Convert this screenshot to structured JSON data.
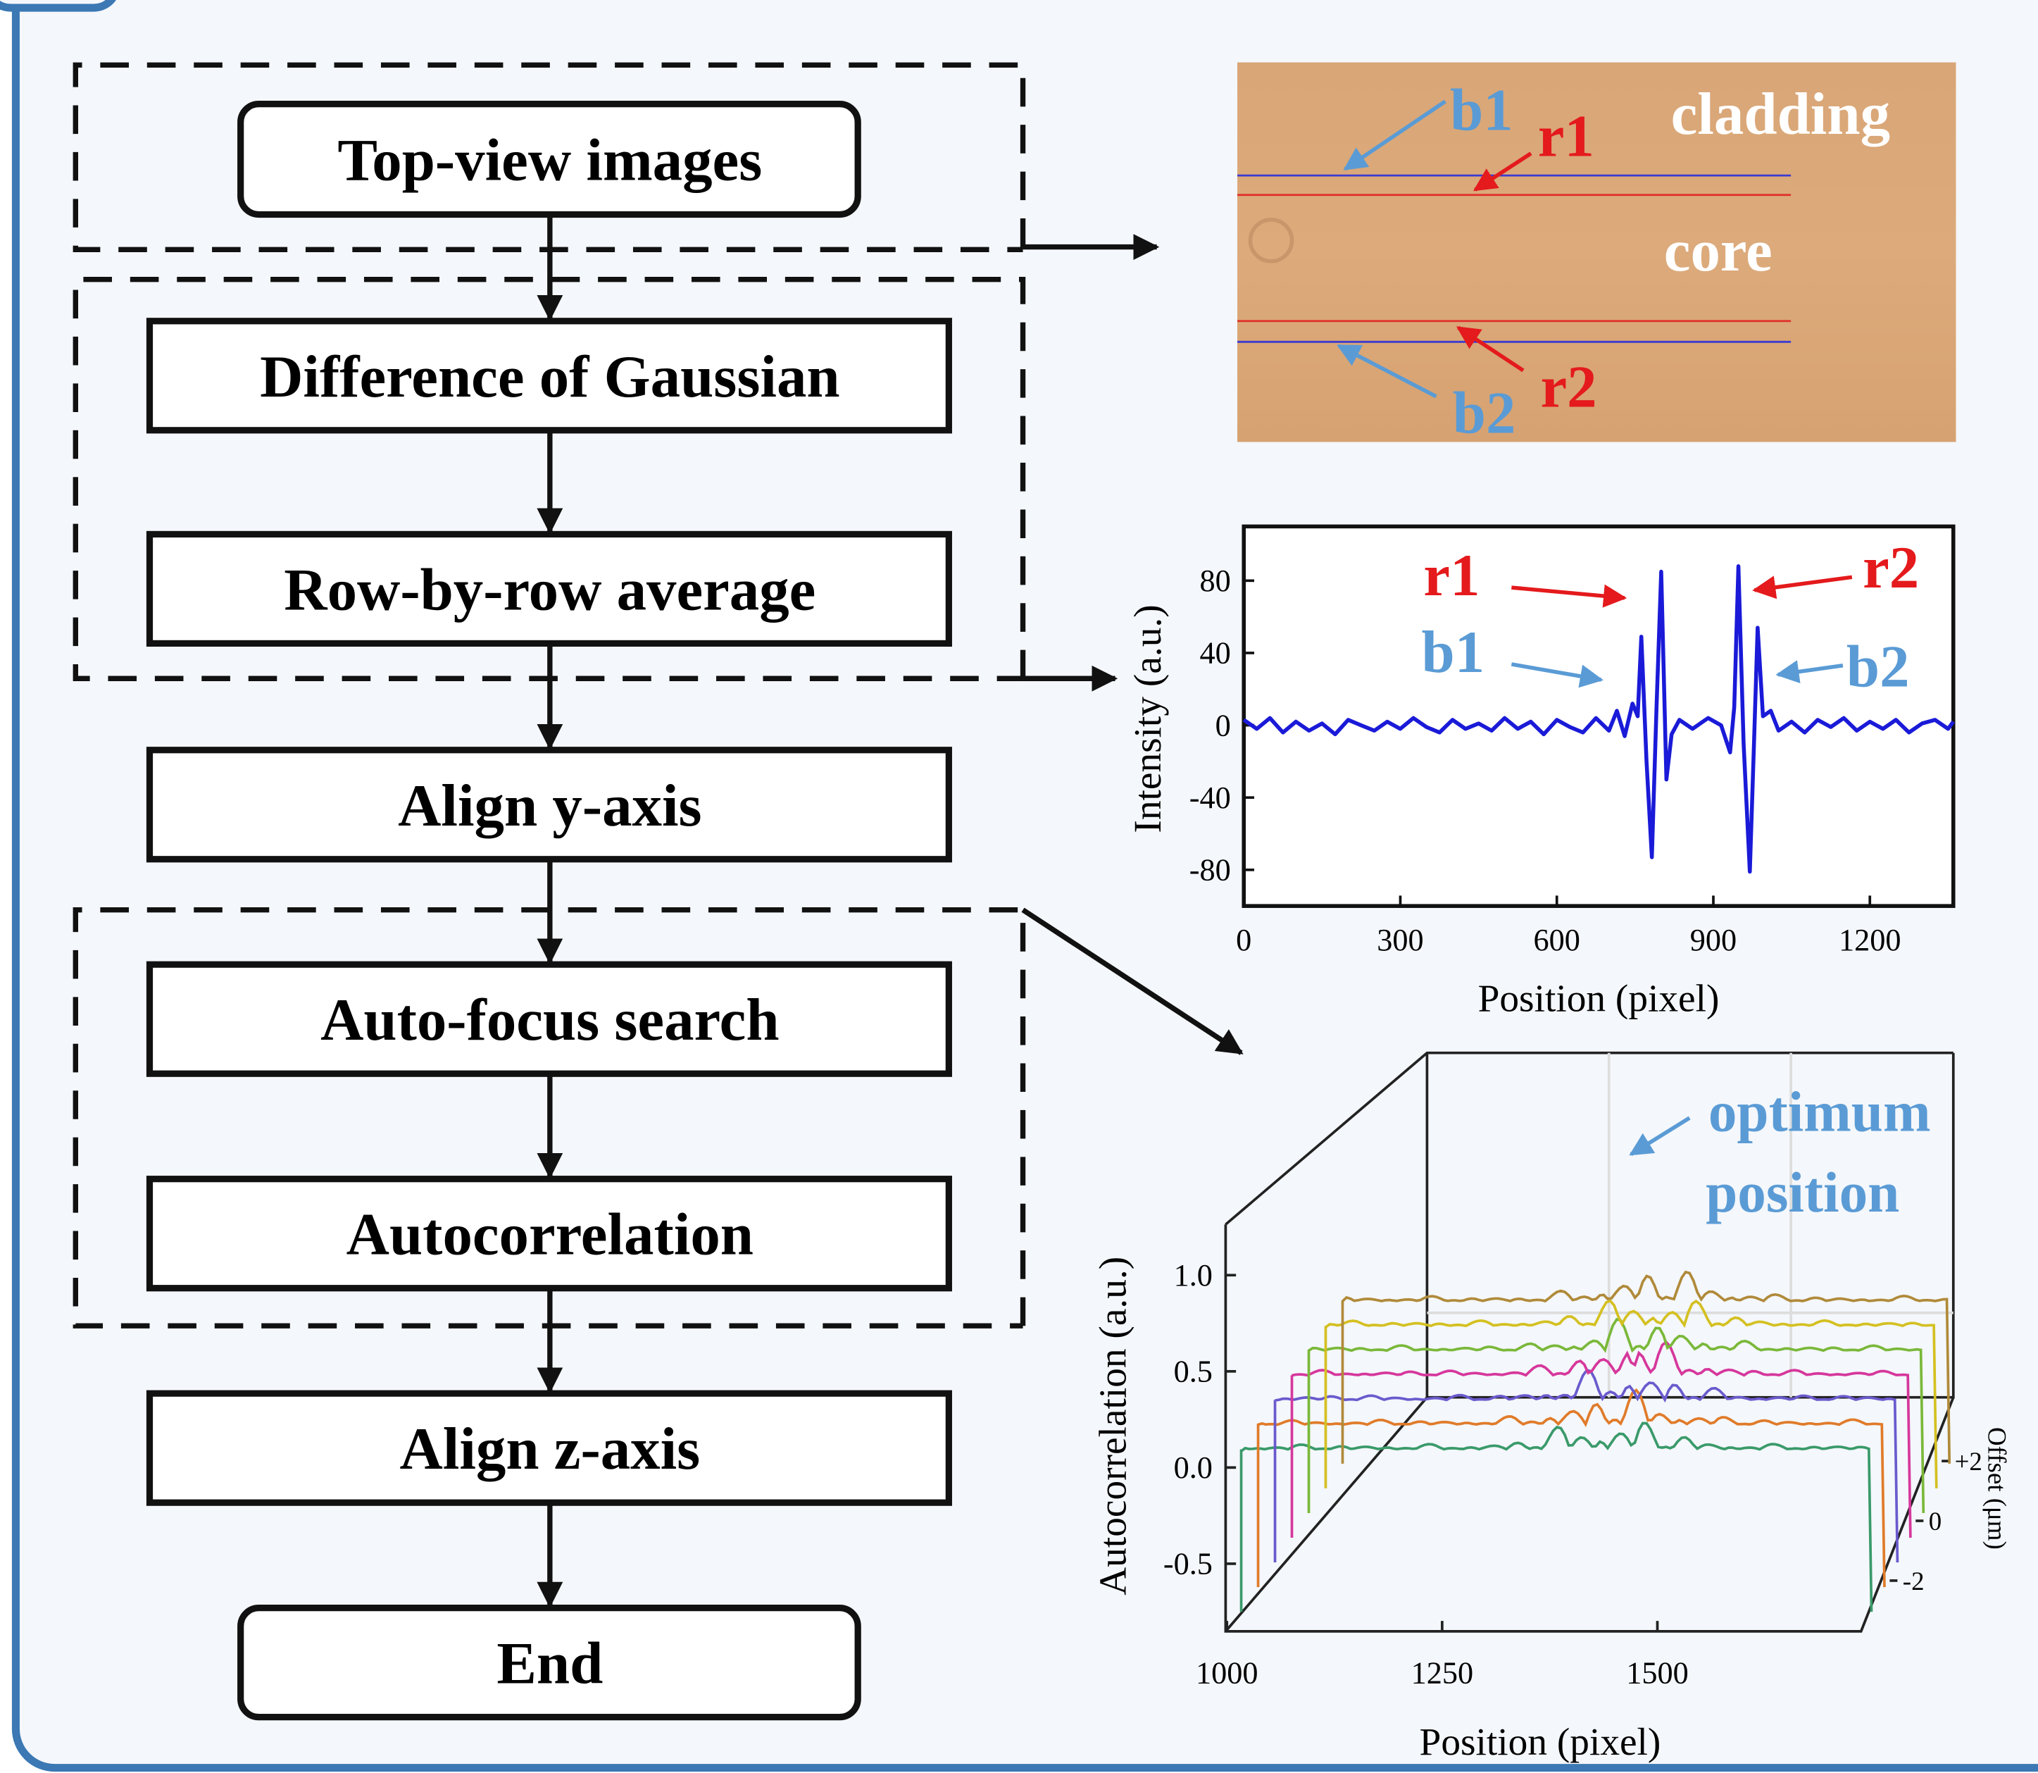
{
  "flowchart": {
    "steps": [
      "Top-view images",
      "Difference of Gaussian",
      "Row-by-row average",
      "Align y-axis",
      "Auto-focus search",
      "Autocorrelation",
      "Align z-axis",
      "End"
    ]
  },
  "image_panel": {
    "labels": [
      "b1",
      "r1",
      "cladding",
      "core",
      "r2",
      "b2"
    ]
  },
  "intensity_plot": {
    "y_label": "Intensity (a.u.)",
    "x_label": "Position (pixel)",
    "xlim": [
      0,
      1360
    ],
    "ylim": [
      -100,
      110
    ],
    "xticks": [
      0,
      300,
      600,
      900,
      1200
    ],
    "yticks": [
      80,
      40,
      0,
      -40,
      -80
    ],
    "annotations": [
      "r1",
      "r2",
      "b1",
      "b2"
    ],
    "x": [
      0,
      25,
      50,
      75,
      100,
      125,
      150,
      175,
      200,
      225,
      250,
      275,
      300,
      325,
      350,
      375,
      400,
      425,
      450,
      475,
      500,
      525,
      550,
      575,
      600,
      625,
      650,
      675,
      700,
      715,
      730,
      745,
      755,
      762,
      772,
      782,
      791,
      800,
      810,
      820,
      835,
      860,
      890,
      915,
      932,
      940,
      948,
      958,
      970,
      978,
      985,
      995,
      1010,
      1025,
      1050,
      1075,
      1100,
      1125,
      1150,
      1175,
      1200,
      1225,
      1250,
      1275,
      1300,
      1325,
      1350,
      1360
    ],
    "values": [
      3,
      -2,
      4,
      -4,
      2,
      -3,
      1,
      -5,
      3,
      0,
      -3,
      2,
      -2,
      4,
      -1,
      -4,
      3,
      -2,
      1,
      -3,
      4,
      -2,
      2,
      -5,
      3,
      -1,
      -4,
      4,
      -3,
      8,
      -6,
      12,
      5,
      49,
      -20,
      -73,
      10,
      85,
      -30,
      -5,
      3,
      -2,
      4,
      0,
      -15,
      10,
      88,
      -10,
      -81,
      -10,
      54,
      5,
      8,
      -3,
      2,
      -4,
      3,
      -1,
      4,
      -3,
      2,
      -2,
      3,
      -4,
      1,
      3,
      -2,
      2
    ]
  },
  "autocorrelation_plot": {
    "y_label": "Autocorrelation (a.u.)",
    "x_label": "Position (pixel)",
    "z_label": "Offset (μm)",
    "xticks": [
      1000,
      1250,
      1500
    ],
    "yticks": [
      {
        "value": 1,
        "label": "1.0"
      },
      {
        "value": 0.5,
        "label": "0.5"
      },
      {
        "value": 0,
        "label": "0.0"
      },
      -0.5
    ],
    "zticks": [
      {
        "value": 2,
        "label": "+2"
      },
      0,
      {
        "value": -2,
        "label": "-2"
      }
    ],
    "annotation": [
      "optimum",
      "position"
    ]
  }
}
